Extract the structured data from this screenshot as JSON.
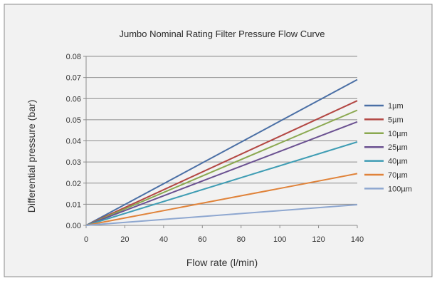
{
  "chart_data": {
    "type": "line",
    "title": "Jumbo Nominal Rating Filter Pressure Flow Curve",
    "xlabel": "Flow rate (l/min)",
    "ylabel": "Differential pressure (bar)",
    "xlim": [
      0,
      140
    ],
    "ylim": [
      0,
      0.08
    ],
    "x_ticks": [
      "0",
      "20",
      "40",
      "60",
      "80",
      "100",
      "120",
      "140"
    ],
    "y_ticks": [
      "0.00",
      "0.01",
      "0.02",
      "0.03",
      "0.04",
      "0.05",
      "0.06",
      "0.07",
      "0.08"
    ],
    "grid": "horizontal",
    "legend_position": "right",
    "series": [
      {
        "name": "1µm",
        "color": "#4a6fa5",
        "x": [
          0,
          140
        ],
        "y": [
          0,
          0.069
        ]
      },
      {
        "name": "5µm",
        "color": "#b34743",
        "x": [
          0,
          140
        ],
        "y": [
          0,
          0.059
        ]
      },
      {
        "name": "10µm",
        "color": "#8aa84f",
        "x": [
          0,
          140
        ],
        "y": [
          0,
          0.0545
        ]
      },
      {
        "name": "25µm",
        "color": "#6b5191",
        "x": [
          0,
          140
        ],
        "y": [
          0,
          0.049
        ]
      },
      {
        "name": "40µm",
        "color": "#3f9db4",
        "x": [
          0,
          140
        ],
        "y": [
          0,
          0.0395
        ]
      },
      {
        "name": "70µm",
        "color": "#e0833a",
        "x": [
          0,
          20,
          40,
          60,
          80,
          100,
          120,
          140
        ],
        "y": [
          0,
          0.0035,
          0.007,
          0.0105,
          0.014,
          0.0175,
          0.021,
          0.0245
        ]
      },
      {
        "name": "100µm",
        "color": "#8ea7d0",
        "x": [
          0,
          140
        ],
        "y": [
          0,
          0.0098
        ]
      }
    ]
  }
}
